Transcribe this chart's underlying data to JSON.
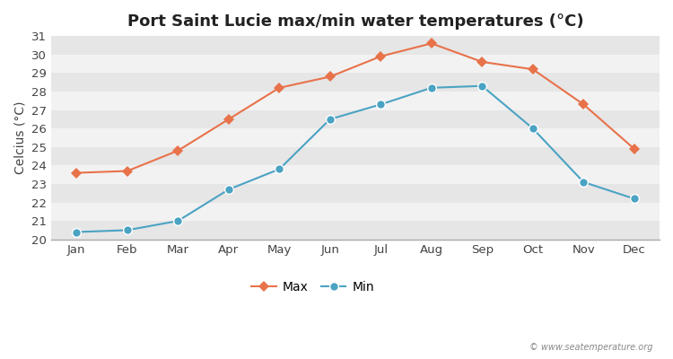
{
  "title": "Port Saint Lucie max/min water temperatures (°C)",
  "ylabel": "Celcius (°C)",
  "months": [
    "Jan",
    "Feb",
    "Mar",
    "Apr",
    "May",
    "Jun",
    "Jul",
    "Aug",
    "Sep",
    "Oct",
    "Nov",
    "Dec"
  ],
  "max_temps": [
    23.6,
    23.7,
    24.8,
    26.5,
    28.2,
    28.8,
    29.9,
    30.6,
    29.6,
    29.2,
    27.3,
    24.9
  ],
  "min_temps": [
    20.4,
    20.5,
    21.0,
    22.7,
    23.8,
    26.5,
    27.3,
    28.2,
    28.3,
    26.0,
    23.1,
    22.2
  ],
  "max_color": "#e8724a",
  "min_color": "#4ba3c3",
  "fig_bg_color": "#ffffff",
  "plot_bg_color_light": "#f2f2f2",
  "plot_bg_color_dark": "#e6e6e6",
  "grid_color": "#ffffff",
  "ylim": [
    20,
    31
  ],
  "yticks": [
    20,
    21,
    22,
    23,
    24,
    25,
    26,
    27,
    28,
    29,
    30,
    31
  ],
  "legend_labels": [
    "Max",
    "Min"
  ],
  "watermark": "© www.seatemperature.org",
  "title_fontsize": 13,
  "axis_label_fontsize": 10,
  "tick_fontsize": 9.5
}
